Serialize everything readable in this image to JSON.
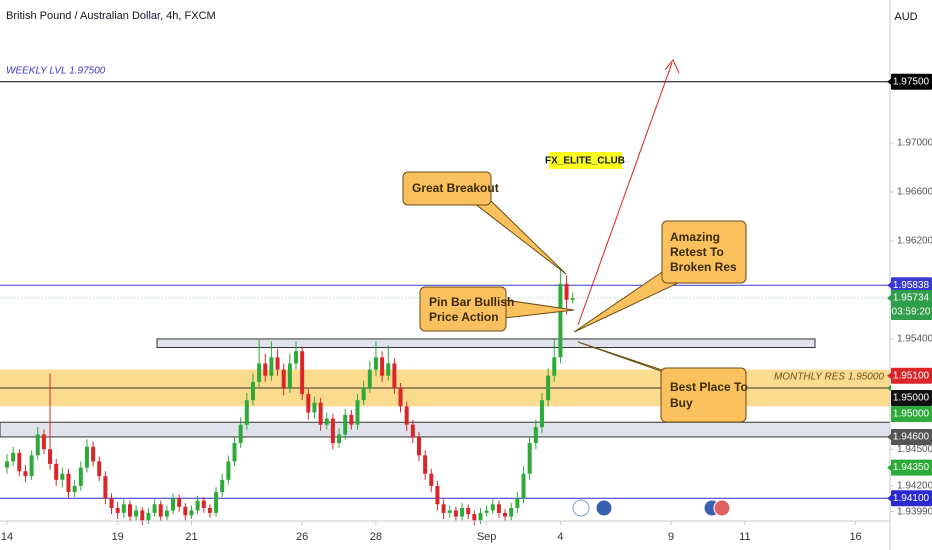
{
  "chart_data": {
    "type": "candlestick",
    "title": "British Pound / Australian Dollar, 4h, FXCM",
    "currency": "AUD",
    "ylim": [
      1.93922,
      1.98167
    ],
    "xlim": [
      -1.14,
      143.6
    ],
    "yticks": [
      {
        "value": 1.97,
        "label": "1.97000"
      },
      {
        "value": 1.966,
        "label": "1.96600"
      },
      {
        "value": 1.962,
        "label": "1.96200"
      },
      {
        "value": 1.954,
        "label": "1.95400"
      },
      {
        "value": 1.945,
        "label": "1.94500"
      },
      {
        "value": 1.942,
        "label": "1.94200"
      },
      {
        "value": 1.9399,
        "label": "1.93990"
      }
    ],
    "xticks": [
      {
        "value": 0,
        "label": "14"
      },
      {
        "value": 18,
        "label": "19"
      },
      {
        "value": 30,
        "label": "21"
      },
      {
        "value": 48,
        "label": "26"
      },
      {
        "value": 60,
        "label": "28"
      },
      {
        "value": 78,
        "label": "Sep"
      },
      {
        "value": 90,
        "label": "4"
      },
      {
        "value": 108,
        "label": "9"
      },
      {
        "value": 120,
        "label": "11"
      },
      {
        "value": 138,
        "label": "16"
      }
    ],
    "up_color": "#2eaa3a",
    "down_color": "#d9262b",
    "ohlc": [
      [
        1.9435,
        1.9446,
        1.943,
        1.944
      ],
      [
        1.944,
        1.9452,
        1.9436,
        1.9447
      ],
      [
        1.9447,
        1.945,
        1.9428,
        1.9432
      ],
      [
        1.9432,
        1.9437,
        1.9423,
        1.9428
      ],
      [
        1.9428,
        1.9449,
        1.9425,
        1.9445
      ],
      [
        1.9445,
        1.9468,
        1.9441,
        1.9462
      ],
      [
        1.9462,
        1.9466,
        1.9446,
        1.945
      ],
      [
        1.945,
        1.9512,
        1.9433,
        1.9438
      ],
      [
        1.9438,
        1.9442,
        1.942,
        1.9425
      ],
      [
        1.9425,
        1.9435,
        1.9419,
        1.943
      ],
      [
        1.943,
        1.9434,
        1.941,
        1.9415
      ],
      [
        1.9415,
        1.9425,
        1.9411,
        1.942
      ],
      [
        1.942,
        1.944,
        1.9416,
        1.9435
      ],
      [
        1.9435,
        1.9458,
        1.9431,
        1.9452
      ],
      [
        1.9452,
        1.9456,
        1.9436,
        1.944
      ],
      [
        1.944,
        1.9444,
        1.9424,
        1.9428
      ],
      [
        1.9428,
        1.9432,
        1.9405,
        1.941
      ],
      [
        1.941,
        1.9414,
        1.9397,
        1.9402
      ],
      [
        1.9402,
        1.9407,
        1.9393,
        1.9398
      ],
      [
        1.9398,
        1.9409,
        1.9394,
        1.9405
      ],
      [
        1.9405,
        1.9408,
        1.9391,
        1.9395
      ],
      [
        1.9395,
        1.9404,
        1.9392,
        1.94
      ],
      [
        1.94,
        1.9403,
        1.9388,
        1.9392
      ],
      [
        1.9392,
        1.9402,
        1.9389,
        1.9398
      ],
      [
        1.9398,
        1.9409,
        1.9395,
        1.9405
      ],
      [
        1.9405,
        1.9408,
        1.9391,
        1.9395
      ],
      [
        1.9395,
        1.9404,
        1.9392,
        1.94
      ],
      [
        1.94,
        1.9414,
        1.9397,
        1.941
      ],
      [
        1.941,
        1.9413,
        1.9399,
        1.9403
      ],
      [
        1.9403,
        1.9406,
        1.9392,
        1.9396
      ],
      [
        1.9396,
        1.9404,
        1.9393,
        1.94
      ],
      [
        1.94,
        1.9412,
        1.9397,
        1.9408
      ],
      [
        1.9408,
        1.9411,
        1.9398,
        1.9402
      ],
      [
        1.9402,
        1.9405,
        1.9394,
        1.9398
      ],
      [
        1.9398,
        1.9419,
        1.9395,
        1.9415
      ],
      [
        1.9415,
        1.943,
        1.9411,
        1.9425
      ],
      [
        1.9425,
        1.9445,
        1.9421,
        1.944
      ],
      [
        1.944,
        1.946,
        1.9436,
        1.9455
      ],
      [
        1.9455,
        1.9476,
        1.9451,
        1.947
      ],
      [
        1.947,
        1.9496,
        1.9466,
        1.949
      ],
      [
        1.949,
        1.9512,
        1.9486,
        1.9505
      ],
      [
        1.9505,
        1.954,
        1.95,
        1.952
      ],
      [
        1.952,
        1.9528,
        1.9505,
        1.951
      ],
      [
        1.951,
        1.9538,
        1.9506,
        1.9525
      ],
      [
        1.9525,
        1.9532,
        1.951,
        1.9515
      ],
      [
        1.9515,
        1.952,
        1.9494,
        1.95
      ],
      [
        1.95,
        1.9528,
        1.9496,
        1.952
      ],
      [
        1.952,
        1.9538,
        1.9515,
        1.953
      ],
      [
        1.953,
        1.9534,
        1.949,
        1.9495
      ],
      [
        1.9495,
        1.95,
        1.9474,
        1.948
      ],
      [
        1.948,
        1.9493,
        1.9475,
        1.9488
      ],
      [
        1.9488,
        1.9492,
        1.9465,
        1.947
      ],
      [
        1.947,
        1.948,
        1.9466,
        1.9475
      ],
      [
        1.9475,
        1.9479,
        1.945,
        1.9455
      ],
      [
        1.9455,
        1.9467,
        1.9451,
        1.9462
      ],
      [
        1.9462,
        1.9483,
        1.9458,
        1.9478
      ],
      [
        1.9478,
        1.9482,
        1.9466,
        1.947
      ],
      [
        1.947,
        1.9495,
        1.9466,
        1.949
      ],
      [
        1.949,
        1.9506,
        1.9486,
        1.95
      ],
      [
        1.95,
        1.9522,
        1.9496,
        1.9515
      ],
      [
        1.9515,
        1.9538,
        1.951,
        1.9525
      ],
      [
        1.9525,
        1.953,
        1.9505,
        1.951
      ],
      [
        1.951,
        1.9535,
        1.9506,
        1.952
      ],
      [
        1.952,
        1.9524,
        1.9495,
        1.95
      ],
      [
        1.95,
        1.9504,
        1.948,
        1.9485
      ],
      [
        1.9485,
        1.9489,
        1.9465,
        1.947
      ],
      [
        1.947,
        1.9474,
        1.9455,
        1.946
      ],
      [
        1.946,
        1.9464,
        1.944,
        1.9445
      ],
      [
        1.9445,
        1.9449,
        1.9425,
        1.943
      ],
      [
        1.943,
        1.9434,
        1.9415,
        1.942
      ],
      [
        1.942,
        1.9424,
        1.94,
        1.9405
      ],
      [
        1.9405,
        1.9409,
        1.9393,
        1.9398
      ],
      [
        1.9398,
        1.9404,
        1.9394,
        1.94
      ],
      [
        1.94,
        1.9403,
        1.9391,
        1.9395
      ],
      [
        1.9395,
        1.9406,
        1.9392,
        1.9402
      ],
      [
        1.9402,
        1.9405,
        1.9393,
        1.9397
      ],
      [
        1.9397,
        1.94,
        1.9388,
        1.9392
      ],
      [
        1.9392,
        1.9402,
        1.9389,
        1.9398
      ],
      [
        1.9398,
        1.9404,
        1.9395,
        1.94
      ],
      [
        1.94,
        1.9409,
        1.9397,
        1.9405
      ],
      [
        1.9405,
        1.9408,
        1.9394,
        1.9398
      ],
      [
        1.9398,
        1.9401,
        1.9391,
        1.9395
      ],
      [
        1.9395,
        1.9406,
        1.9392,
        1.9402
      ],
      [
        1.9402,
        1.9415,
        1.9398,
        1.941
      ],
      [
        1.941,
        1.9436,
        1.9406,
        1.943
      ],
      [
        1.943,
        1.946,
        1.9425,
        1.9455
      ],
      [
        1.9455,
        1.9474,
        1.945,
        1.9468
      ],
      [
        1.9468,
        1.9496,
        1.9463,
        1.949
      ],
      [
        1.949,
        1.9516,
        1.9485,
        1.951
      ],
      [
        1.951,
        1.954,
        1.9505,
        1.9525
      ],
      [
        1.9525,
        1.9597,
        1.952,
        1.9585
      ],
      [
        1.9585,
        1.9592,
        1.956,
        1.9572
      ],
      [
        1.9572,
        1.9578,
        1.9569,
        1.95734
      ]
    ],
    "levels": [
      {
        "value": 1.975,
        "color": "#000000"
      },
      {
        "value": 1.95838,
        "color": "#3a3acf"
      },
      {
        "value": 1.95734,
        "color": "#9ccfa4"
      },
      {
        "value": 1.95,
        "color": "#333333"
      },
      {
        "value": 1.941,
        "color": "#2a2ad0"
      }
    ],
    "zones": [
      {
        "from": 1.9515,
        "to": 1.9485,
        "color": "#fbdc8e"
      },
      {
        "from": 1.9472,
        "to": 1.946,
        "color": "#e0e3eb"
      },
      {
        "from": 1.954,
        "to": 1.9533,
        "color": "#e0e3eb"
      }
    ],
    "price_tags": [
      {
        "value": 1.975,
        "label": "1.97500",
        "color": "#000000"
      },
      {
        "value": 1.95838,
        "label": "1.95838",
        "color": "#3a3acf"
      },
      {
        "value": 1.95734,
        "label": "1.95734",
        "color": "#2e9e4a"
      },
      {
        "value": 1.951,
        "label": "1.95100",
        "color": "#d9262b"
      },
      {
        "value": 1.95,
        "label": "1.95000",
        "color": "#111111"
      },
      {
        "value": 1.95,
        "label": "1.95000",
        "color": "#2eaa3a"
      },
      {
        "value": 1.946,
        "label": "1.94600",
        "color": "#555555"
      },
      {
        "value": 1.9435,
        "label": "1.94350",
        "color": "#2eaa3a"
      },
      {
        "value": 1.941,
        "label": "1.94100",
        "color": "#2a2ad0"
      }
    ],
    "countdown": "03:59:20",
    "annotations": {
      "weekly": "WEEKLY LVL 1.97500",
      "monthly": "MONTHLY RES 1.95000",
      "club": "FX_ELITE_CLUB",
      "breakout": "Great Breakout",
      "retest": [
        "Amazing",
        "Retest To",
        "Broken Res"
      ],
      "pinbar": [
        "Pin Bar Bullish",
        "Price Action"
      ],
      "buy": [
        "Best Place To",
        "Buy"
      ]
    }
  }
}
